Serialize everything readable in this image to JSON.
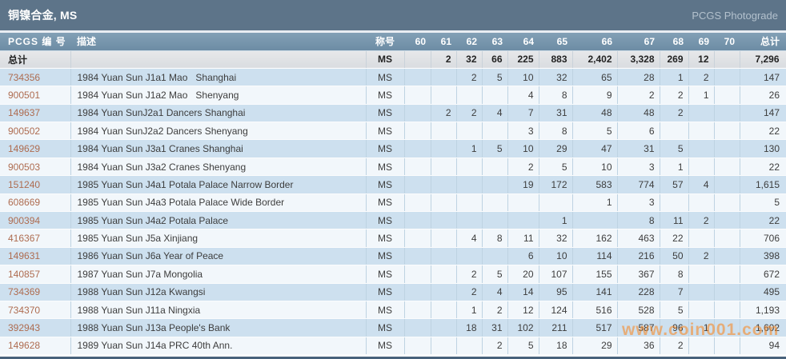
{
  "title_bar": {
    "title": "铜镍合金, MS",
    "right_link": "PCGS Photograde"
  },
  "watermark": "www.coin001.com",
  "colors": {
    "titlebar_bg": "#5d7489",
    "header_bg": "#7593aa",
    "row_blue": "#cde0ef",
    "row_light": "#f2f7fb",
    "pcgs_link": "#ae6c50",
    "watermark_orange": "#f78a2a",
    "bottom_border": "#48627c"
  },
  "table": {
    "columns": {
      "id": "PCGS 编 号",
      "desc": "描述",
      "designation": "称号",
      "grades": [
        "60",
        "61",
        "62",
        "63",
        "64",
        "65",
        "66",
        "67",
        "68",
        "69",
        "70"
      ],
      "total": "总计"
    },
    "total_row": {
      "id": "总计",
      "desc": "",
      "designation": "MS",
      "grades": [
        "",
        "2",
        "32",
        "66",
        "225",
        "883",
        "2,402",
        "3,328",
        "269",
        "12",
        ""
      ],
      "total": "7,296"
    },
    "rows": [
      {
        "id": "734356",
        "desc": "1984 Yuan Sun J1a1 Mao   Shanghai",
        "designation": "MS",
        "grades": [
          "",
          "",
          "2",
          "5",
          "10",
          "32",
          "65",
          "28",
          "1",
          "2",
          ""
        ],
        "total": "147"
      },
      {
        "id": "900501",
        "desc": "1984 Yuan Sun J1a2 Mao   Shenyang",
        "designation": "MS",
        "grades": [
          "",
          "",
          "",
          "",
          "4",
          "8",
          "9",
          "2",
          "2",
          "1",
          ""
        ],
        "total": "26"
      },
      {
        "id": "149637",
        "desc": "1984 Yuan SunJ2a1 Dancers Shanghai",
        "designation": "MS",
        "grades": [
          "",
          "2",
          "2",
          "4",
          "7",
          "31",
          "48",
          "48",
          "2",
          "",
          ""
        ],
        "total": "147"
      },
      {
        "id": "900502",
        "desc": "1984 Yuan SunJ2a2 Dancers Shenyang",
        "designation": "MS",
        "grades": [
          "",
          "",
          "",
          "",
          "3",
          "8",
          "5",
          "6",
          "",
          "",
          ""
        ],
        "total": "22"
      },
      {
        "id": "149629",
        "desc": "1984 Yuan Sun J3a1 Cranes Shanghai",
        "designation": "MS",
        "grades": [
          "",
          "",
          "1",
          "5",
          "10",
          "29",
          "47",
          "31",
          "5",
          "",
          ""
        ],
        "total": "130"
      },
      {
        "id": "900503",
        "desc": "1984 Yuan Sun J3a2 Cranes Shenyang",
        "designation": "MS",
        "grades": [
          "",
          "",
          "",
          "",
          "2",
          "5",
          "10",
          "3",
          "1",
          "",
          ""
        ],
        "total": "22"
      },
      {
        "id": "151240",
        "desc": "1985 Yuan Sun J4a1 Potala Palace Narrow Border",
        "designation": "MS",
        "grades": [
          "",
          "",
          "",
          "",
          "19",
          "172",
          "583",
          "774",
          "57",
          "4",
          ""
        ],
        "total": "1,615"
      },
      {
        "id": "608669",
        "desc": "1985 Yuan Sun J4a3 Potala Palace Wide Border",
        "designation": "MS",
        "grades": [
          "",
          "",
          "",
          "",
          "",
          "",
          "1",
          "3",
          "",
          "",
          ""
        ],
        "total": "5"
      },
      {
        "id": "900394",
        "desc": "1985 Yuan Sun J4a2 Potala Palace",
        "designation": "MS",
        "grades": [
          "",
          "",
          "",
          "",
          "",
          "1",
          "",
          "8",
          "11",
          "2",
          ""
        ],
        "total": "22"
      },
      {
        "id": "416367",
        "desc": "1985 Yuan Sun J5a Xinjiang",
        "designation": "MS",
        "grades": [
          "",
          "",
          "4",
          "8",
          "11",
          "32",
          "162",
          "463",
          "22",
          "",
          ""
        ],
        "total": "706"
      },
      {
        "id": "149631",
        "desc": "1986 Yuan Sun J6a Year of Peace",
        "designation": "MS",
        "grades": [
          "",
          "",
          "",
          "",
          "6",
          "10",
          "114",
          "216",
          "50",
          "2",
          ""
        ],
        "total": "398"
      },
      {
        "id": "140857",
        "desc": "1987 Yuan Sun J7a Mongolia",
        "designation": "MS",
        "grades": [
          "",
          "",
          "2",
          "5",
          "20",
          "107",
          "155",
          "367",
          "8",
          "",
          ""
        ],
        "total": "672"
      },
      {
        "id": "734369",
        "desc": "1988 Yuan Sun J12a Kwangsi",
        "designation": "MS",
        "grades": [
          "",
          "",
          "2",
          "4",
          "14",
          "95",
          "141",
          "228",
          "7",
          "",
          ""
        ],
        "total": "495"
      },
      {
        "id": "734370",
        "desc": "1988 Yuan Sun J11a Ningxia",
        "designation": "MS",
        "grades": [
          "",
          "",
          "1",
          "2",
          "12",
          "124",
          "516",
          "528",
          "5",
          "",
          ""
        ],
        "total": "1,193"
      },
      {
        "id": "392943",
        "desc": "1988 Yuan Sun J13a People's Bank",
        "designation": "MS",
        "grades": [
          "",
          "",
          "18",
          "31",
          "102",
          "211",
          "517",
          "587",
          "96",
          "1",
          ""
        ],
        "total": "1,602"
      },
      {
        "id": "149628",
        "desc": "1989 Yuan Sun J14a PRC 40th Ann.",
        "designation": "MS",
        "grades": [
          "",
          "",
          "",
          "2",
          "5",
          "18",
          "29",
          "36",
          "2",
          "",
          ""
        ],
        "total": "94"
      }
    ]
  }
}
